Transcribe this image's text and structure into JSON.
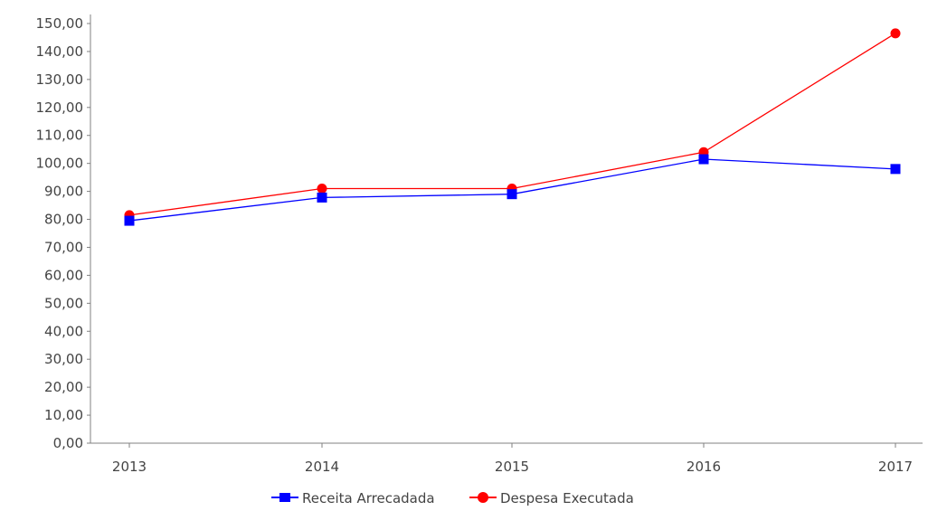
{
  "chart_data": {
    "type": "line",
    "categories": [
      "2013",
      "2014",
      "2015",
      "2016",
      "2017"
    ],
    "y_ticks": [
      "0,00",
      "10,00",
      "20,00",
      "30,00",
      "40,00",
      "50,00",
      "60,00",
      "70,00",
      "80,00",
      "90,00",
      "100,00",
      "110,00",
      "120,00",
      "130,00",
      "140,00",
      "150,00"
    ],
    "ylim": [
      0,
      150
    ],
    "grid": false,
    "legend_position": "bottom",
    "series": [
      {
        "name": "Receita Arrecadada",
        "values": [
          79.5,
          87.8,
          89.0,
          101.5,
          98.0
        ],
        "color": "#0000ff",
        "marker": "square"
      },
      {
        "name": "Despesa Executada",
        "values": [
          81.5,
          91.0,
          91.0,
          104.0,
          146.5
        ],
        "color": "#ff0000",
        "marker": "circle"
      }
    ]
  }
}
